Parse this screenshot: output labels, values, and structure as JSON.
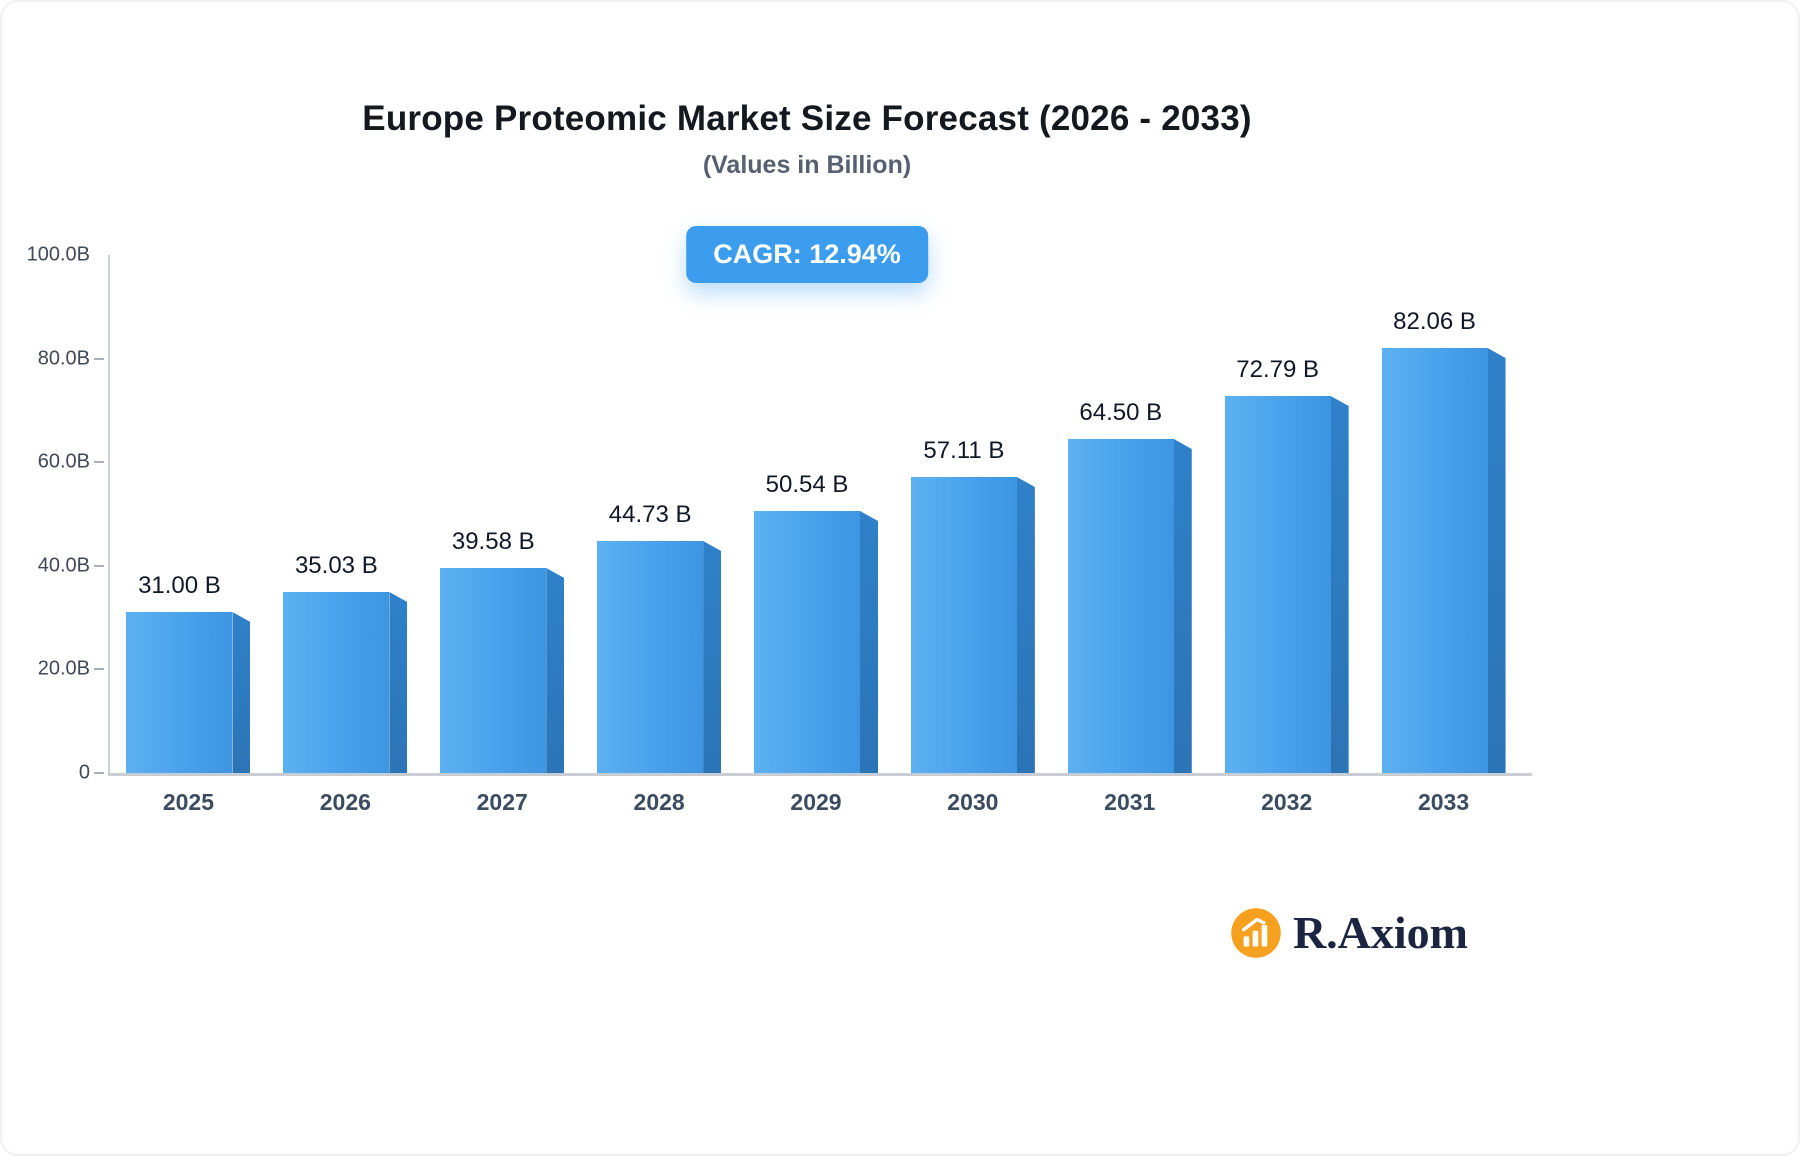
{
  "title": "Europe Proteomic Market Size Forecast (2026 - 2033)",
  "subtitle": "(Values in Billion)",
  "badge": {
    "label": "CAGR: 12.94%"
  },
  "logo": {
    "text": "R.Axiom"
  },
  "colors": {
    "badge_bg": "#3c9ced",
    "bar_light": "#5db1f2",
    "bar_main": "#49a2ea",
    "bar_dark": "#3e95e2",
    "bar_side": "#2f81c9",
    "logo_orange": "#f6a01f"
  },
  "chart_data": {
    "type": "bar",
    "title": "Europe Proteomic Market Size Forecast (2026 - 2033)",
    "subtitle": "(Values in Billion)",
    "annotation": "CAGR: 12.94%",
    "categories": [
      "2025",
      "2026",
      "2027",
      "2028",
      "2029",
      "2030",
      "2031",
      "2032",
      "2033"
    ],
    "values": [
      31.0,
      35.03,
      39.58,
      44.73,
      50.54,
      57.11,
      64.5,
      72.79,
      82.06
    ],
    "labels": [
      "31.00 B",
      "35.03 B",
      "39.58 B",
      "44.73 B",
      "50.54 B",
      "57.11 B",
      "64.50 B",
      "72.79 B",
      "82.06 B"
    ],
    "xlabel": "",
    "ylabel": "",
    "ylim": [
      0,
      100
    ],
    "grid": false,
    "legend": false,
    "yticks": [
      {
        "label": "100.0B",
        "value": 100,
        "dash": false
      },
      {
        "label": "80.0B",
        "value": 80,
        "dash": true
      },
      {
        "label": "60.0B",
        "value": 60,
        "dash": true
      },
      {
        "label": "40.0B",
        "value": 40,
        "dash": true
      },
      {
        "label": "20.0B",
        "value": 20,
        "dash": true
      },
      {
        "label": "0",
        "value": 0,
        "dash": true
      }
    ]
  }
}
